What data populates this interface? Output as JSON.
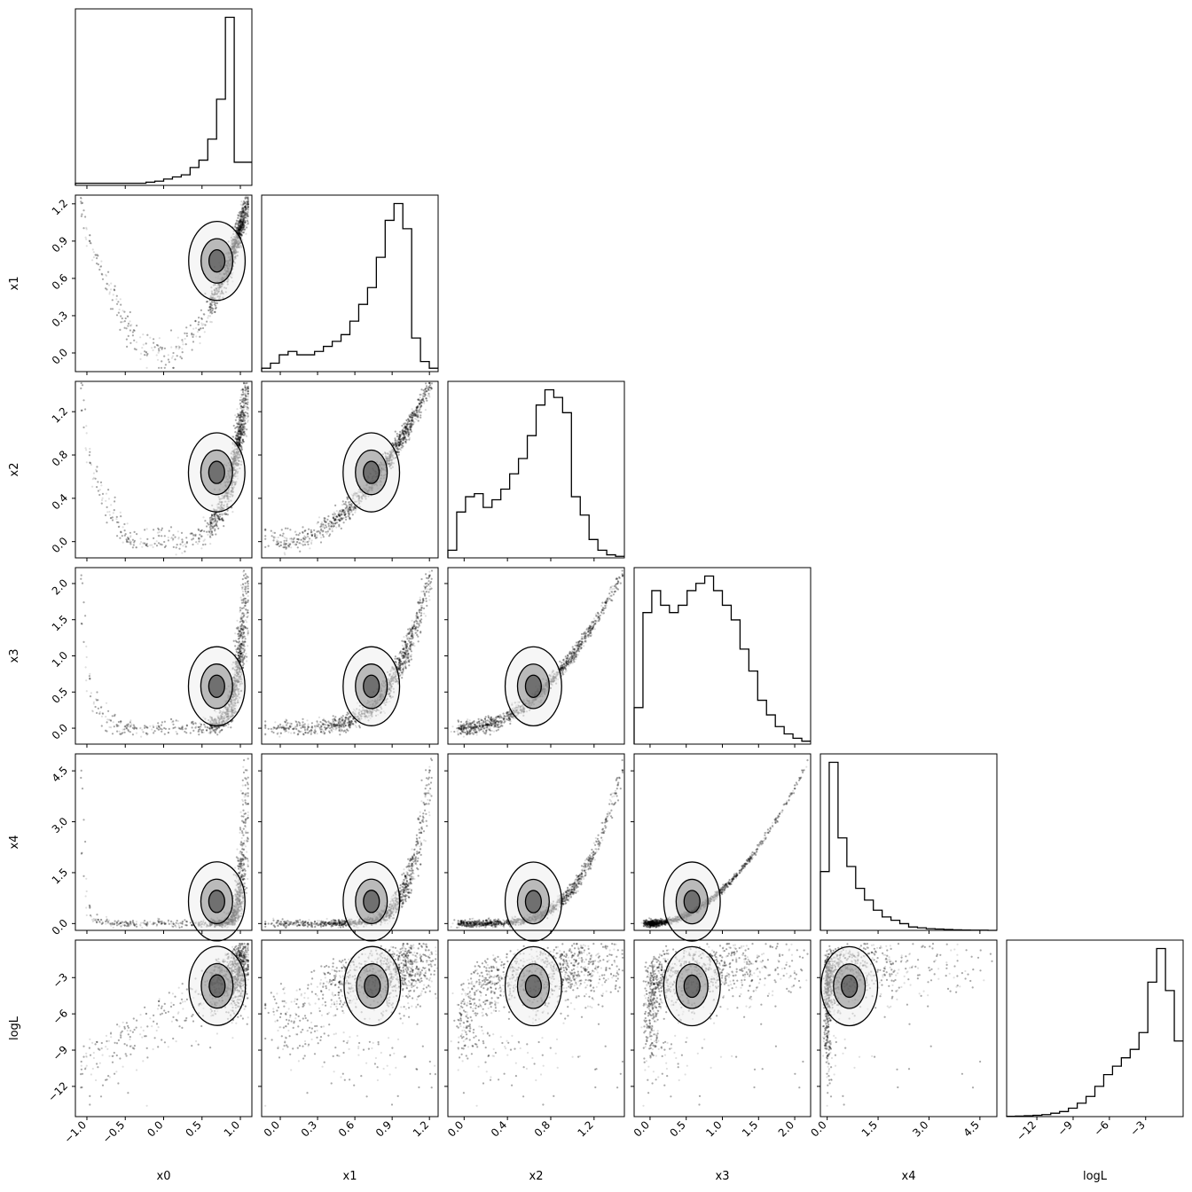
{
  "chart_data": {
    "type": "corner",
    "params": [
      "x0",
      "x1",
      "x2",
      "x3",
      "x4",
      "logL"
    ],
    "ranges": {
      "x0": [
        -1.15,
        1.15
      ],
      "x1": [
        -0.15,
        1.27
      ],
      "x2": [
        -0.15,
        1.48
      ],
      "x3": [
        -0.22,
        2.22
      ],
      "x4": [
        -0.2,
        5.0
      ],
      "logL": [
        -14.5,
        0.1
      ]
    },
    "ticks": {
      "x0": [
        "-1.0",
        "-0.5",
        "0.0",
        "0.5",
        "1.0"
      ],
      "x1": [
        "0.0",
        "0.3",
        "0.6",
        "0.9",
        "1.2"
      ],
      "x2": [
        "0.0",
        "0.4",
        "0.8",
        "1.2"
      ],
      "x3": [
        "0.0",
        "0.5",
        "1.0",
        "1.5",
        "2.0"
      ],
      "x4": [
        "0.0",
        "1.5",
        "3.0",
        "4.5"
      ],
      "logL": [
        "-12",
        "-9",
        "-6",
        "-3"
      ]
    },
    "histograms": {
      "x0": [
        0.01,
        0.01,
        0.01,
        0.01,
        0.01,
        0.01,
        0.01,
        0.01,
        0.015,
        0.02,
        0.03,
        0.04,
        0.05,
        0.085,
        0.12,
        0.22,
        0.41,
        0.8,
        0.11,
        0.11
      ],
      "x1": [
        0.02,
        0.05,
        0.1,
        0.12,
        0.1,
        0.1,
        0.12,
        0.15,
        0.18,
        0.22,
        0.3,
        0.4,
        0.5,
        0.68,
        0.9,
        1.0,
        0.85,
        0.2,
        0.06,
        0.02
      ],
      "x2": [
        0.05,
        0.3,
        0.4,
        0.42,
        0.33,
        0.38,
        0.45,
        0.55,
        0.65,
        0.8,
        1.0,
        1.1,
        1.05,
        0.95,
        0.4,
        0.28,
        0.12,
        0.05,
        0.02,
        0.01
      ],
      "x3": [
        0.25,
        0.9,
        1.05,
        0.95,
        0.9,
        0.95,
        1.05,
        1.1,
        1.15,
        1.05,
        0.95,
        0.85,
        0.65,
        0.5,
        0.3,
        0.2,
        0.12,
        0.07,
        0.04,
        0.02
      ],
      "x4": [
        0.35,
        1.0,
        0.55,
        0.38,
        0.25,
        0.18,
        0.12,
        0.08,
        0.06,
        0.04,
        0.02,
        0.015,
        0.01,
        0.008,
        0.005,
        0.003,
        0.002,
        0.001,
        0.001,
        0.0
      ],
      "logL": [
        0.002,
        0.003,
        0.005,
        0.008,
        0.012,
        0.02,
        0.03,
        0.05,
        0.08,
        0.12,
        0.18,
        0.25,
        0.3,
        0.35,
        0.4,
        0.5,
        0.8,
        1.0,
        0.75,
        0.45
      ]
    }
  }
}
